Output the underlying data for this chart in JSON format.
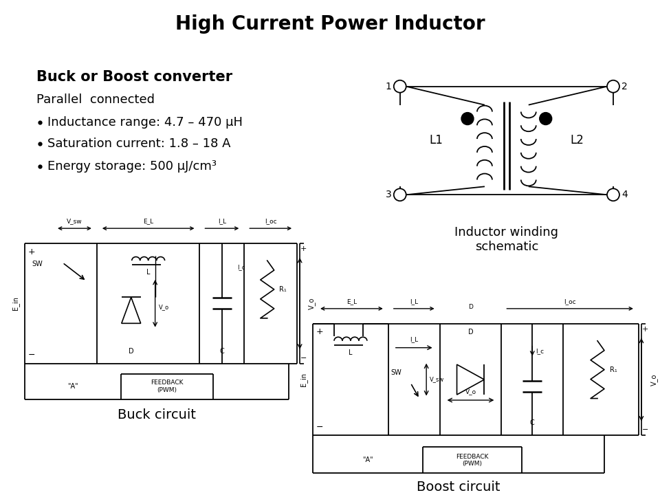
{
  "title": "High Current Power Inductor",
  "title_fontsize": 20,
  "title_fontweight": "bold",
  "bg_color": "#ffffff",
  "text_color": "#000000",
  "section_title": "Buck or Boost converter",
  "section_title_fontsize": 15,
  "section_subtitle": "Parallel  connected",
  "section_subtitle_fontsize": 13,
  "bullets": [
    "Inductance range: 4.7 – 470 μH",
    "Saturation current: 1.8 – 18 A",
    "Energy storage: 500 μJ/cm³"
  ],
  "bullet_fontsize": 13,
  "schematic_label": "Inductor winding\nschematic",
  "schematic_label_fontsize": 13,
  "buck_label": "Buck circuit",
  "boost_label": "Boost circuit",
  "circuit_label_fontsize": 14
}
